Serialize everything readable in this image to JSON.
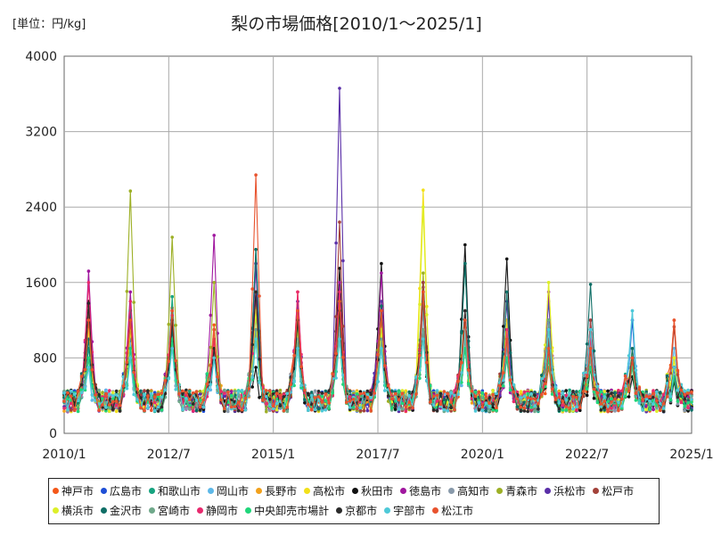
{
  "chart_data": {
    "type": "line",
    "title": "梨の市場価格[2010/1～2025/1]",
    "unit_label": "[単位：円/kg]",
    "xlabel": "",
    "ylabel": "",
    "x_ticks": [
      "2010/1",
      "2012/7",
      "2015/1",
      "2017/7",
      "2020/1",
      "2022/7",
      "2025/1"
    ],
    "x_range": [
      2010.0,
      2025.0
    ],
    "ylim": [
      0,
      4000
    ],
    "y_ticks": [
      0,
      800,
      1600,
      2400,
      3200,
      4000
    ],
    "grid": true,
    "legend_position": "bottom",
    "series": [
      {
        "name": "神戸市",
        "color": "#f4581a",
        "peaks": [
          1350,
          1300,
          1330,
          1150,
          1400,
          1500,
          1350,
          1300,
          1600,
          1100,
          1000,
          700,
          800,
          750,
          1200
        ]
      },
      {
        "name": "広島市",
        "color": "#1f4fd6",
        "peaks": [
          800,
          1000,
          1200,
          1000,
          1300,
          1200,
          1500,
          1300,
          1500,
          1200,
          1100,
          1400,
          1100,
          1200,
          600
        ]
      },
      {
        "name": "和歌山市",
        "color": "#16a37f",
        "peaks": [
          900,
          1100,
          1450,
          900,
          1950,
          1000,
          1500,
          1000,
          1600,
          1800,
          1200,
          1000,
          1000,
          900,
          700
        ]
      },
      {
        "name": "岡山市",
        "color": "#5db8e8",
        "peaks": [
          700,
          950,
          1100,
          800,
          1250,
          900,
          1300,
          1000,
          1300,
          900,
          900,
          1000,
          1100,
          1300,
          900
        ]
      },
      {
        "name": "長野市",
        "color": "#f2a11c",
        "peaks": [
          1300,
          1150,
          1200,
          1100,
          1400,
          1300,
          1300,
          1200,
          1400,
          1300,
          1000,
          1000,
          900,
          800,
          800
        ]
      },
      {
        "name": "高松市",
        "color": "#f2e01a",
        "peaks": [
          1150,
          1100,
          1250,
          1000,
          1300,
          1200,
          1400,
          1100,
          2580,
          1300,
          1200,
          1600,
          900,
          800,
          800
        ]
      },
      {
        "name": "秋田市",
        "color": "#111111",
        "peaks": [
          1400,
          1300,
          1300,
          900,
          700,
          1200,
          1750,
          1800,
          1100,
          2000,
          1850,
          800,
          700,
          600,
          550
        ]
      },
      {
        "name": "徳島市",
        "color": "#a0179f",
        "peaks": [
          1720,
          1500,
          1250,
          2100,
          1800,
          1400,
          1600,
          1700,
          1550,
          1300,
          800,
          1500,
          1200,
          800,
          700
        ]
      },
      {
        "name": "高知市",
        "color": "#8899aa",
        "peaks": [
          800,
          900,
          1000,
          900,
          1100,
          1000,
          1100,
          1000,
          1300,
          1000,
          900,
          900,
          800,
          700,
          600
        ]
      },
      {
        "name": "青森市",
        "color": "#9db026",
        "peaks": [
          1200,
          2570,
          2080,
          1600,
          1300,
          1250,
          1400,
          1400,
          1700,
          1100,
          1000,
          1000,
          900,
          800,
          700
        ]
      },
      {
        "name": "浜松市",
        "color": "#5a2fa8",
        "peaks": [
          1200,
          1300,
          1200,
          1000,
          1800,
          1400,
          3660,
          1400,
          1600,
          1200,
          1400,
          1000,
          1200,
          800,
          700
        ]
      },
      {
        "name": "松戸市",
        "color": "#a3423a",
        "peaks": [
          1300,
          1200,
          1300,
          1000,
          1500,
          1200,
          2240,
          1300,
          1600,
          1100,
          1000,
          1000,
          1200,
          800,
          1130
        ]
      },
      {
        "name": "横浜市",
        "color": "#ddef2a",
        "peaks": [
          1100,
          1200,
          1000,
          1000,
          1300,
          1100,
          1300,
          1100,
          2400,
          1100,
          1100,
          1600,
          1000,
          900,
          800
        ]
      },
      {
        "name": "金沢市",
        "color": "#0f6e66",
        "peaks": [
          1000,
          1300,
          1100,
          900,
          1950,
          1200,
          1300,
          1350,
          1400,
          1800,
          1500,
          1200,
          1580,
          900,
          600
        ]
      },
      {
        "name": "宮崎市",
        "color": "#6fa88a",
        "peaks": [
          800,
          900,
          1000,
          900,
          1100,
          1000,
          1200,
          1000,
          1100,
          1000,
          1000,
          1200,
          800,
          800,
          700
        ]
      },
      {
        "name": "静岡市",
        "color": "#e82a6e",
        "peaks": [
          1600,
          1400,
          1300,
          1000,
          1500,
          1500,
          1500,
          1300,
          1500,
          1300,
          1100,
          900,
          1000,
          800,
          700
        ]
      },
      {
        "name": "中央卸売市場計",
        "color": "#1fd67a",
        "peaks": [
          800,
          900,
          1000,
          800,
          1000,
          900,
          1000,
          900,
          1000,
          900,
          800,
          800,
          700,
          700,
          600
        ]
      },
      {
        "name": "京都市",
        "color": "#2b2b2b",
        "peaks": [
          1380,
          1200,
          1200,
          900,
          1500,
          1200,
          1300,
          1300,
          1500,
          1300,
          1000,
          900,
          900,
          800,
          700
        ]
      },
      {
        "name": "宇部市",
        "color": "#4ec9d8",
        "peaks": [
          700,
          800,
          900,
          800,
          1000,
          900,
          1000,
          900,
          1000,
          1100,
          1000,
          1100,
          1100,
          1300,
          700
        ]
      },
      {
        "name": "松江市",
        "color": "#e8532e",
        "peaks": [
          1200,
          1200,
          1300,
          1100,
          2740,
          1300,
          1400,
          1300,
          1500,
          1200,
          1000,
          900,
          900,
          800,
          1200
        ]
      }
    ]
  }
}
